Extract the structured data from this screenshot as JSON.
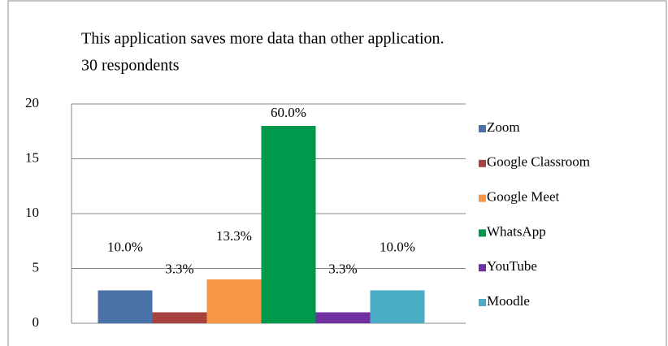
{
  "chart_data": {
    "type": "bar",
    "title": "This application saves more data than other application.",
    "subtitle": "30 respondents",
    "categories": [
      null
    ],
    "series": [
      {
        "name": "Zoom",
        "color": "#4a72a8",
        "values": [
          3
        ],
        "value_labels": [
          "10.0%"
        ]
      },
      {
        "name": "Google Classroom",
        "color": "#a8423f",
        "values": [
          1
        ],
        "value_labels": [
          "3.3%"
        ]
      },
      {
        "name": "Google Meet",
        "color": "#f79646",
        "values": [
          4
        ],
        "value_labels": [
          "13.3%"
        ]
      },
      {
        "name": "WhatsApp",
        "color": "#00984a",
        "values": [
          18
        ],
        "value_labels": [
          "60.0%"
        ]
      },
      {
        "name": "YouTube",
        "color": "#7030a0",
        "values": [
          1
        ],
        "value_labels": [
          "3.3%"
        ]
      },
      {
        "name": "Moodle",
        "color": "#4bacc6",
        "values": [
          3
        ],
        "value_labels": [
          "10.0%"
        ]
      }
    ],
    "ylim": [
      0,
      20
    ],
    "yticks": [
      0,
      5,
      10,
      15,
      20
    ],
    "grid": true,
    "legend": "right"
  }
}
